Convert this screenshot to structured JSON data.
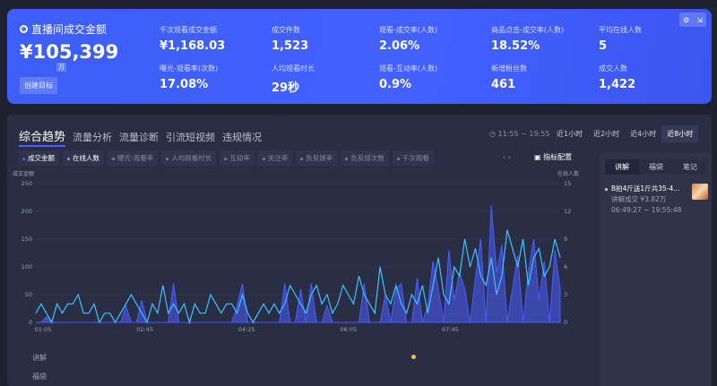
{
  "summary": {
    "title": "直播间成交金额",
    "value": "¥105,399",
    "unit": "万",
    "target_button": "创建目标",
    "metrics": [
      {
        "label": "千次观看成交金额",
        "value": "¥1,168.03"
      },
      {
        "label": "成交件数",
        "value": "1,523"
      },
      {
        "label": "观看-成交率(人数)",
        "value": "2.06%"
      },
      {
        "label": "商品点击-成交率(人数)",
        "value": "18.52%"
      },
      {
        "label": "平均在线人数",
        "value": "5"
      },
      {
        "label": "曝光-观看率(次数)",
        "value": "17.08%"
      },
      {
        "label": "人均观看时长",
        "value": "29秒"
      },
      {
        "label": "观看-互动率(人数)",
        "value": "0.9%"
      },
      {
        "label": "新增粉丝数",
        "value": "461"
      },
      {
        "label": "成交人数",
        "value": "1,422"
      }
    ]
  },
  "tabs": [
    "综合趋势",
    "流量分析",
    "流量诊断",
    "引流短视频",
    "违规情况"
  ],
  "time_range": "11:55 ~ 19:55",
  "ranges": [
    "近1小时",
    "近2小时",
    "近4小时",
    "近8小时"
  ],
  "active_range": 3,
  "legend": [
    {
      "label": "成交金额",
      "on": true,
      "color": "#4a5cff"
    },
    {
      "label": "在线人数",
      "on": true,
      "color": "#3ec1ff"
    },
    {
      "label": "曝光-观看率",
      "on": false
    },
    {
      "label": "人均观看时长",
      "on": false
    },
    {
      "label": "互动率",
      "on": false
    },
    {
      "label": "关注率",
      "on": false
    },
    {
      "label": "负反馈率",
      "on": false
    },
    {
      "label": "负反馈次数",
      "on": false
    },
    {
      "label": "千次观看",
      "on": false
    }
  ],
  "pager": "‹ ›",
  "config_label": "指标配置",
  "side": {
    "tabs": [
      "讲解",
      "福袋",
      "笔记"
    ],
    "item": {
      "title": "B拍4斤送1斤共35-4...",
      "sub": "讲解成交 ¥3.82万",
      "time": "06:49:27 ~ 19:55:48"
    }
  },
  "rows": [
    "讲解",
    "福袋"
  ],
  "chart_data": {
    "type": "line",
    "left_axis": {
      "label": "成交金额",
      "ylim": [
        0,
        250
      ],
      "ticks": [
        0,
        50,
        100,
        150,
        200,
        250
      ]
    },
    "right_axis": {
      "label": "在线人数",
      "ylim": [
        0,
        15
      ],
      "ticks": [
        0,
        3,
        6,
        9,
        12,
        15
      ]
    },
    "x_ticks": [
      "01:05",
      "02:45",
      "04:25",
      "06:05",
      "07:45"
    ],
    "grid": true,
    "series": [
      {
        "name": "成交金额",
        "axis": "left",
        "color": "#4a5cff",
        "values": [
          0,
          0,
          10,
          0,
          0,
          0,
          0,
          0,
          0,
          0,
          0,
          0,
          0,
          0,
          0,
          0,
          0,
          30,
          0,
          0,
          40,
          0,
          0,
          0,
          0,
          0,
          70,
          0,
          0,
          0,
          0,
          0,
          0,
          0,
          0,
          0,
          0,
          0,
          30,
          70,
          0,
          0,
          0,
          0,
          0,
          0,
          0,
          70,
          0,
          0,
          60,
          0,
          70,
          0,
          0,
          30,
          0,
          0,
          0,
          0,
          0,
          0,
          70,
          0,
          0,
          0,
          50,
          0,
          60,
          70,
          0,
          0,
          80,
          0,
          30,
          110,
          60,
          0,
          130,
          40,
          90,
          60,
          0,
          80,
          150,
          0,
          210,
          90,
          140,
          0,
          60,
          120,
          0,
          90,
          150,
          40,
          110,
          0,
          130,
          60
        ]
      },
      {
        "name": "在线人数",
        "axis": "right",
        "color": "#3ec1ff",
        "values": [
          1,
          2,
          1,
          0,
          2,
          1,
          2,
          2,
          3,
          1,
          1,
          2,
          0,
          1,
          1,
          0,
          1,
          2,
          3,
          2,
          1,
          0,
          2,
          1,
          4,
          1,
          2,
          1,
          2,
          0,
          2,
          1,
          1,
          3,
          2,
          1,
          2,
          2,
          1,
          3,
          1,
          0,
          1,
          2,
          1,
          2,
          1,
          2,
          4,
          3,
          2,
          1,
          3,
          4,
          2,
          3,
          1,
          2,
          4,
          3,
          2,
          5,
          3,
          2,
          1,
          6,
          3,
          2,
          4,
          2,
          1,
          3,
          2,
          4,
          1,
          4,
          7,
          3,
          2,
          6,
          5,
          9,
          6,
          8,
          5,
          4,
          7,
          3,
          5,
          10,
          8,
          6,
          9,
          4,
          7,
          8,
          5,
          6,
          9,
          7
        ]
      }
    ]
  }
}
